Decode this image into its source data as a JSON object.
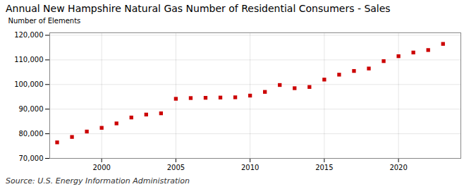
{
  "chart_data": {
    "type": "scatter",
    "title": "Annual New Hampshire Natural Gas Number of Residential Consumers - Sales",
    "ylabel": "Number of Elements",
    "annotations": [
      "Source: U.S. Energy Information Administration"
    ],
    "x": [
      1997,
      1998,
      1999,
      2000,
      2001,
      2002,
      2003,
      2004,
      2005,
      2006,
      2007,
      2008,
      2009,
      2010,
      2011,
      2012,
      2013,
      2014,
      2015,
      2016,
      2017,
      2018,
      2019,
      2020,
      2021,
      2022,
      2023
    ],
    "values": [
      76500,
      78700,
      80900,
      82400,
      84200,
      86600,
      87800,
      88300,
      94200,
      94500,
      94600,
      94700,
      94800,
      95500,
      97000,
      99800,
      98500,
      99000,
      102000,
      104000,
      105500,
      106500,
      109500,
      111500,
      113000,
      114000,
      116500
    ],
    "color": "#cc0000",
    "marker": "square",
    "xlim": [
      1996.5,
      2024.2
    ],
    "xticks": [
      2000,
      2005,
      2010,
      2015,
      2020
    ],
    "ylim": [
      70000,
      121000
    ],
    "yticks": [
      {
        "value": 70000,
        "label": "70,000"
      },
      {
        "value": 80000,
        "label": "80,000"
      },
      {
        "value": 90000,
        "label": "90,000"
      },
      {
        "value": 100000,
        "label": "100,000"
      },
      {
        "value": 110000,
        "label": "110,000"
      },
      {
        "value": 120000,
        "label": "120,000"
      }
    ],
    "grid": true
  }
}
